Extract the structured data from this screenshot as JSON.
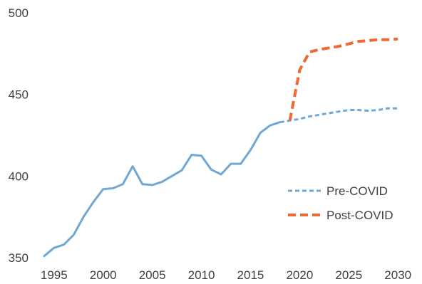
{
  "chart_data": {
    "type": "line",
    "title": "",
    "xlabel": "",
    "ylabel": "",
    "xlim": [
      1994,
      2031
    ],
    "ylim": [
      350,
      500
    ],
    "xticks": [
      1995,
      2000,
      2005,
      2010,
      2015,
      2020,
      2025,
      2030
    ],
    "yticks": [
      350,
      400,
      450,
      500
    ],
    "grid": false,
    "legend_position": "right",
    "series": [
      {
        "name": "",
        "style": "solid",
        "color": "#6fa8d4",
        "x": [
          1994,
          1995,
          1996,
          1997,
          1998,
          1999,
          2000,
          2001,
          2002,
          2003,
          2004,
          2005,
          2006,
          2007,
          2008,
          2009,
          2010,
          2011,
          2012,
          2013,
          2014,
          2015,
          2016,
          2017,
          2018
        ],
        "y": [
          351,
          356,
          358,
          364,
          375,
          384,
          392,
          392.5,
          395,
          406,
          395,
          394.5,
          396.5,
          400,
          403.5,
          413,
          412.5,
          404,
          401,
          407.5,
          407.5,
          416,
          426.5,
          431,
          433
        ]
      },
      {
        "name": "Pre-COVID",
        "style": "dashed",
        "color": "#6fa8d4",
        "x": [
          2018,
          2019,
          2020,
          2021,
          2022,
          2023,
          2024,
          2025,
          2026,
          2027,
          2028,
          2029,
          2030
        ],
        "y": [
          433,
          434,
          435,
          436.5,
          437.5,
          438.5,
          439.5,
          440.5,
          440.5,
          440,
          440.5,
          441.5,
          441.5
        ]
      },
      {
        "name": "Post-COVID",
        "style": "dashed",
        "color": "#ee6a34",
        "x": [
          2019,
          2020,
          2021,
          2022,
          2023,
          2024,
          2025,
          2026,
          2027,
          2028,
          2029,
          2030
        ],
        "y": [
          434,
          465,
          476,
          477.5,
          478.5,
          479.5,
          481,
          482.5,
          483,
          483.5,
          483.5,
          484
        ]
      }
    ]
  }
}
